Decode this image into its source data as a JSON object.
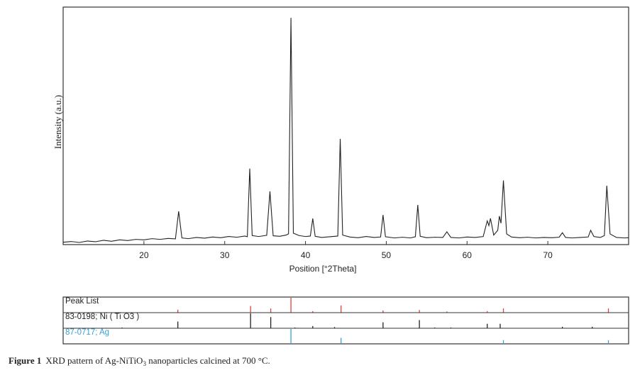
{
  "chart_data": [
    {
      "type": "line",
      "x_label": "Position [°2Theta]",
      "y_label": "Intensity (a.u.)",
      "color": "#222222",
      "xlim": [
        10,
        80
      ],
      "ylim": [
        0,
        100
      ],
      "xticks": [
        20,
        30,
        40,
        50,
        60,
        70
      ],
      "x": [
        10,
        11,
        12,
        13,
        14,
        15,
        16,
        17,
        18,
        19,
        20,
        21,
        22,
        23,
        23.9,
        24.3,
        24.7,
        25.5,
        26.5,
        27.5,
        28.5,
        29.5,
        30.5,
        31.5,
        32.5,
        32.8,
        33.1,
        33.4,
        34.2,
        35.2,
        35.6,
        36.0,
        36.8,
        37.6,
        37.9,
        38.2,
        38.5,
        39.2,
        40.0,
        40.6,
        40.9,
        41.2,
        42,
        43,
        44,
        44.3,
        44.6,
        45.5,
        46.5,
        47.5,
        48.5,
        49.3,
        49.6,
        49.9,
        51,
        52,
        53,
        53.6,
        53.9,
        54.2,
        55,
        56,
        57,
        57.5,
        58,
        59,
        60,
        61,
        62,
        62.5,
        62.7,
        62.9,
        63.3,
        63.8,
        64.0,
        64.2,
        64.5,
        64.9,
        65.5,
        66.5,
        67.5,
        68.5,
        69.5,
        70.5,
        71.4,
        71.8,
        72.2,
        73,
        74,
        75,
        75.3,
        75.7,
        76.5,
        77.0,
        77.3,
        77.7,
        78.5,
        79.5,
        80
      ],
      "values": [
        1.0,
        1.3,
        0.9,
        1.5,
        1.2,
        1.8,
        1.4,
        2.0,
        1.7,
        2.2,
        2.0,
        2.5,
        2.2,
        2.6,
        2.4,
        14,
        2.8,
        2.5,
        3.0,
        2.7,
        3.2,
        2.9,
        3.4,
        3.1,
        3.6,
        3.3,
        32,
        3.8,
        3.4,
        3.9,
        22.4,
        3.7,
        3.5,
        4.0,
        4.5,
        95.5,
        4.8,
        3.8,
        3.4,
        3.6,
        11,
        3.5,
        3.0,
        3.3,
        3.6,
        44.5,
        4.0,
        3.2,
        2.9,
        3.4,
        3.0,
        3.2,
        12.5,
        3.3,
        2.8,
        3.1,
        2.8,
        3.3,
        16.7,
        3.5,
        2.9,
        3.1,
        3.0,
        5.4,
        3.0,
        2.8,
        3.2,
        3.0,
        3.4,
        10,
        8,
        11,
        4,
        6,
        12,
        9,
        27,
        4.5,
        3.2,
        2.9,
        3.1,
        2.8,
        3.0,
        2.9,
        3.1,
        5,
        3.0,
        2.8,
        3.0,
        3.2,
        6,
        3.4,
        3.0,
        3.8,
        24.8,
        4.5,
        3.0,
        2.8,
        2.9
      ]
    },
    {
      "type": "stick",
      "xlim": [
        10,
        80
      ],
      "ylim": [
        0,
        100
      ],
      "series": [
        {
          "name": "Peak List",
          "color": "#e0403c",
          "label_color": "#222222",
          "x": [
            24.2,
            33.2,
            35.7,
            38.2,
            40.9,
            44.4,
            49.6,
            54.1,
            57.5,
            62.5,
            64.5,
            77.5
          ],
          "values": [
            20,
            45,
            28,
            100,
            10,
            48,
            15,
            18,
            8,
            10,
            28,
            28
          ]
        },
        {
          "name": "83-0198; Ni ( Ti O3 )",
          "color": "#222222",
          "label_color": "#222222",
          "x": [
            17.3,
            24.2,
            33.2,
            35.7,
            38.7,
            40.9,
            43.6,
            49.6,
            54.1,
            56.0,
            58.0,
            62.5,
            64.1,
            71.8,
            75.5
          ],
          "values": [
            5,
            45,
            100,
            75,
            5,
            15,
            8,
            40,
            55,
            5,
            5,
            30,
            30,
            10,
            10
          ]
        },
        {
          "name": "87-0717; Ag",
          "color": "#3aa0d0",
          "label_color": "#3aa0d0",
          "x": [
            38.2,
            44.4,
            64.5,
            77.5
          ],
          "values": [
            100,
            40,
            25,
            25
          ]
        }
      ]
    }
  ],
  "caption": {
    "label": "Figure 1",
    "text_before": "XRD pattern of Ag-NiTiO",
    "subscript": "3",
    "text_after": " nanoparticles calcined at 700 °C."
  }
}
